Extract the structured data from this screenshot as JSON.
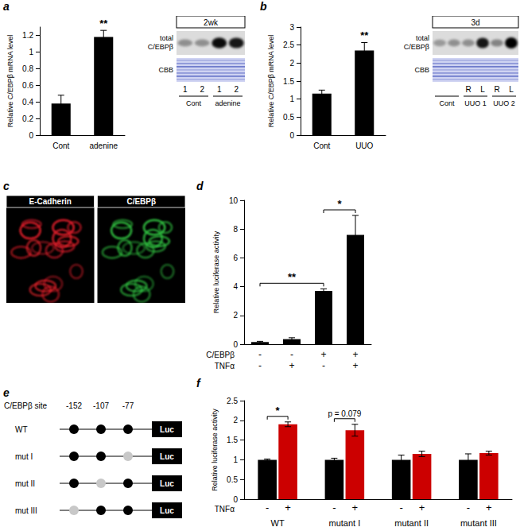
{
  "chart_data": [
    {
      "panel": "a",
      "type": "bar",
      "categories": [
        "Cont",
        "adenine"
      ],
      "values": [
        0.38,
        1.18
      ],
      "errors": [
        0.1,
        0.08
      ],
      "color": "#000000",
      "y_label": "Relative C/EBPβ mRNA level",
      "ylim": [
        0,
        1.3
      ],
      "yticks": [
        0,
        0.2,
        0.4,
        0.6,
        0.8,
        1,
        1.2
      ],
      "grid": false,
      "annotations": [
        {
          "text": "**",
          "category": "adenine"
        }
      ]
    },
    {
      "panel": "b",
      "type": "bar",
      "categories": [
        "Cont",
        "UUO"
      ],
      "values": [
        1.15,
        2.35
      ],
      "errors": [
        0.1,
        0.22
      ],
      "color": "#000000",
      "y_label": "Relative C/EBPβ mRNA level",
      "ylim": [
        0,
        3
      ],
      "yticks": [
        0,
        0.5,
        1,
        1.5,
        2,
        2.5,
        3
      ],
      "grid": false,
      "annotations": [
        {
          "text": "**",
          "category": "UUO"
        }
      ]
    },
    {
      "panel": "d",
      "type": "bar",
      "conditions": [
        {
          "label": "C/EBPβ",
          "values": [
            "-",
            "-",
            "+",
            "+"
          ]
        },
        {
          "label": "TNFα",
          "values": [
            "-",
            "+",
            "-",
            "+"
          ]
        }
      ],
      "values": [
        0.15,
        0.35,
        3.7,
        7.6
      ],
      "errors": [
        0.05,
        0.1,
        0.15,
        1.35
      ],
      "color": "#000000",
      "y_label": "Relative luciferase activity",
      "ylim": [
        0,
        10
      ],
      "yticks": [
        0,
        2,
        4,
        6,
        8,
        10
      ],
      "grid": false,
      "comparisons": [
        {
          "text": "**",
          "bars": [
            0,
            2
          ]
        },
        {
          "text": "*",
          "bars": [
            2,
            3
          ]
        }
      ]
    },
    {
      "panel": "f",
      "type": "bar",
      "categories": [
        "WT",
        "mutant I",
        "mutant II",
        "mutant III"
      ],
      "condition_label": "TNFα",
      "series": [
        {
          "name": "-",
          "color": "#000000",
          "values": [
            1,
            1,
            1,
            1
          ],
          "errors": [
            0.02,
            0.04,
            0.12,
            0.15
          ]
        },
        {
          "name": "+",
          "color": "#cc0000",
          "values": [
            1.9,
            1.75,
            1.15,
            1.17
          ],
          "errors": [
            0.06,
            0.15,
            0.07,
            0.05
          ]
        }
      ],
      "y_label": "Relative luciferase activity",
      "ylim": [
        0,
        2.5
      ],
      "yticks": [
        0,
        0.5,
        1,
        1.5,
        2,
        2.5
      ],
      "grid": false,
      "comparisons": [
        {
          "text": "*",
          "category": "WT"
        },
        {
          "text": "p = 0.079",
          "category": "mutant I"
        }
      ]
    }
  ],
  "blots": [
    {
      "panel": "a",
      "time": "2wk",
      "band_label": "total C/EBPβ",
      "loading_label": "CBB",
      "lanes": [
        "1",
        "2",
        "1",
        "2"
      ],
      "band_intensity": [
        0.35,
        0.35,
        0.95,
        0.9
      ],
      "groups": [
        {
          "name": "Cont",
          "lanes": 2
        },
        {
          "name": "adenine",
          "lanes": 2
        }
      ]
    },
    {
      "panel": "b",
      "time": "3d",
      "band_label": "total C/EBPβ",
      "loading_label": "CBB",
      "lanes": [
        null,
        null,
        "R",
        "L",
        "R",
        "L"
      ],
      "band_intensity": [
        0.3,
        0.35,
        0.35,
        0.9,
        0.4,
        1
      ],
      "groups": [
        {
          "name": "Cont",
          "lanes": 2
        },
        {
          "name": "UUO 1",
          "lanes": 2
        },
        {
          "name": "UUO 2",
          "lanes": 2
        }
      ]
    }
  ],
  "images": {
    "panel": "c",
    "channels": [
      {
        "label": "E-Cadherin",
        "color": "#e0202a"
      },
      {
        "label": "C/EBPβ",
        "color": "#30c040"
      }
    ]
  },
  "diagram": {
    "panel": "e",
    "site_label": "C/EBPβ site",
    "sites": [
      "-152",
      "-107",
      "-77"
    ],
    "reporter": "Luc",
    "constructs": [
      {
        "name": "WT",
        "mutated": []
      },
      {
        "name": "mut I",
        "mutated": [
          "-77"
        ]
      },
      {
        "name": "mut II",
        "mutated": [
          "-107"
        ]
      },
      {
        "name": "mut III",
        "mutated": [
          "-152"
        ]
      }
    ]
  }
}
